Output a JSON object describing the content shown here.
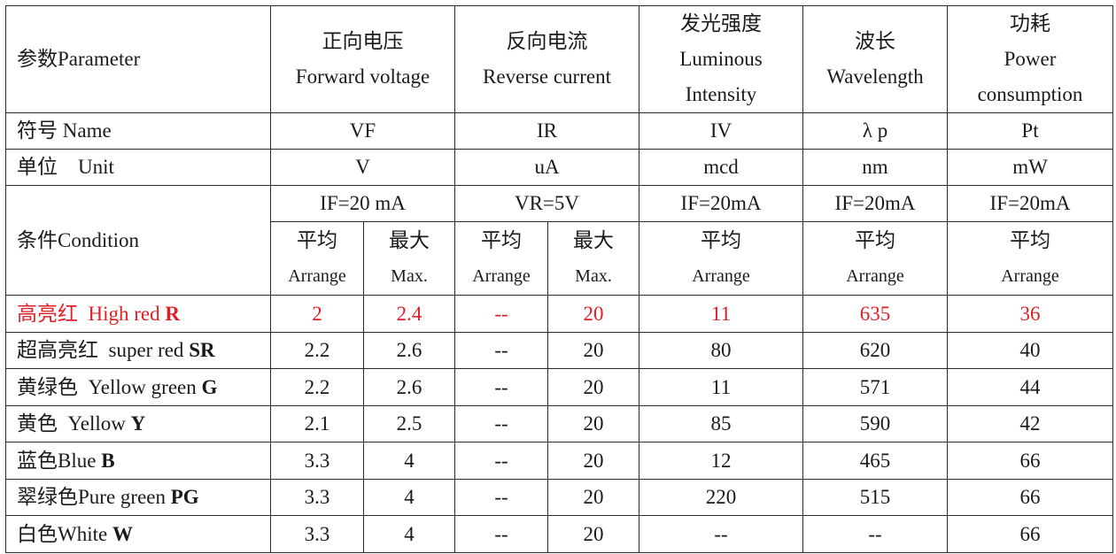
{
  "header": {
    "parameter": "参数Parameter",
    "forward_voltage": [
      "正向电压",
      "Forward voltage"
    ],
    "reverse_current": [
      "反向电流",
      "Reverse current"
    ],
    "luminous_intensity": [
      "发光强度",
      "Luminous",
      "Intensity"
    ],
    "wavelength": [
      "波长",
      "Wavelength"
    ],
    "power": [
      "功耗",
      "Power",
      "consumption"
    ]
  },
  "name_row": {
    "label": "符号 Name",
    "values": [
      "VF",
      "IR",
      "IV",
      "λ p",
      "Pt"
    ]
  },
  "unit_row": {
    "label": "单位　Unit",
    "values": [
      "V",
      "uA",
      "mcd",
      "nm",
      "mW"
    ]
  },
  "condition": {
    "label": "条件Condition",
    "values": [
      "IF=20 mA",
      "VR=5V",
      "IF=20mA",
      "IF=20mA",
      "IF=20mA"
    ],
    "avg_cn": "平均",
    "avg_en": "Arrange",
    "max_cn": "最大",
    "max_en": "Max."
  },
  "rows": [
    {
      "label_cn": "高亮红",
      "label_en": "High red",
      "code": "R",
      "highlight": true,
      "vf_avg": "2",
      "vf_max": "2.4",
      "ir_avg": "--",
      "ir_max": "20",
      "iv": "11",
      "wl": "635",
      "pt": "36"
    },
    {
      "label_cn": "超高亮红",
      "label_en": "super red",
      "code": "SR",
      "highlight": false,
      "vf_avg": "2.2",
      "vf_max": "2.6",
      "ir_avg": "--",
      "ir_max": "20",
      "iv": "80",
      "wl": "620",
      "pt": "40"
    },
    {
      "label_cn": "黄绿色",
      "label_en": "Yellow green",
      "code": "G",
      "highlight": false,
      "vf_avg": "2.2",
      "vf_max": "2.6",
      "ir_avg": "--",
      "ir_max": "20",
      "iv": "11",
      "wl": "571",
      "pt": "44"
    },
    {
      "label_cn": "黄色",
      "label_en": "Yellow",
      "code": "Y",
      "highlight": false,
      "vf_avg": "2.1",
      "vf_max": "2.5",
      "ir_avg": "--",
      "ir_max": "20",
      "iv": "85",
      "wl": "590",
      "pt": "42"
    },
    {
      "label_cn": "蓝色",
      "label_en": "Blue",
      "code": "B",
      "highlight": false,
      "vf_avg": "3.3",
      "vf_max": "4",
      "ir_avg": "--",
      "ir_max": "20",
      "iv": "12",
      "wl": "465",
      "pt": "66"
    },
    {
      "label_cn": "翠绿色",
      "label_en": "Pure green",
      "code": "PG",
      "highlight": false,
      "vf_avg": "3.3",
      "vf_max": "4",
      "ir_avg": "--",
      "ir_max": "20",
      "iv": "220",
      "wl": "515",
      "pt": "66"
    },
    {
      "label_cn": "白色",
      "label_en": "White",
      "code": "W",
      "highlight": false,
      "vf_avg": "3.3",
      "vf_max": "4",
      "ir_avg": "--",
      "ir_max": "20",
      "iv": "--",
      "wl": "--",
      "pt": "66"
    }
  ],
  "colors": {
    "highlight": "#e01f26",
    "text": "#1a1a1a",
    "border": "#2a2a2a"
  }
}
